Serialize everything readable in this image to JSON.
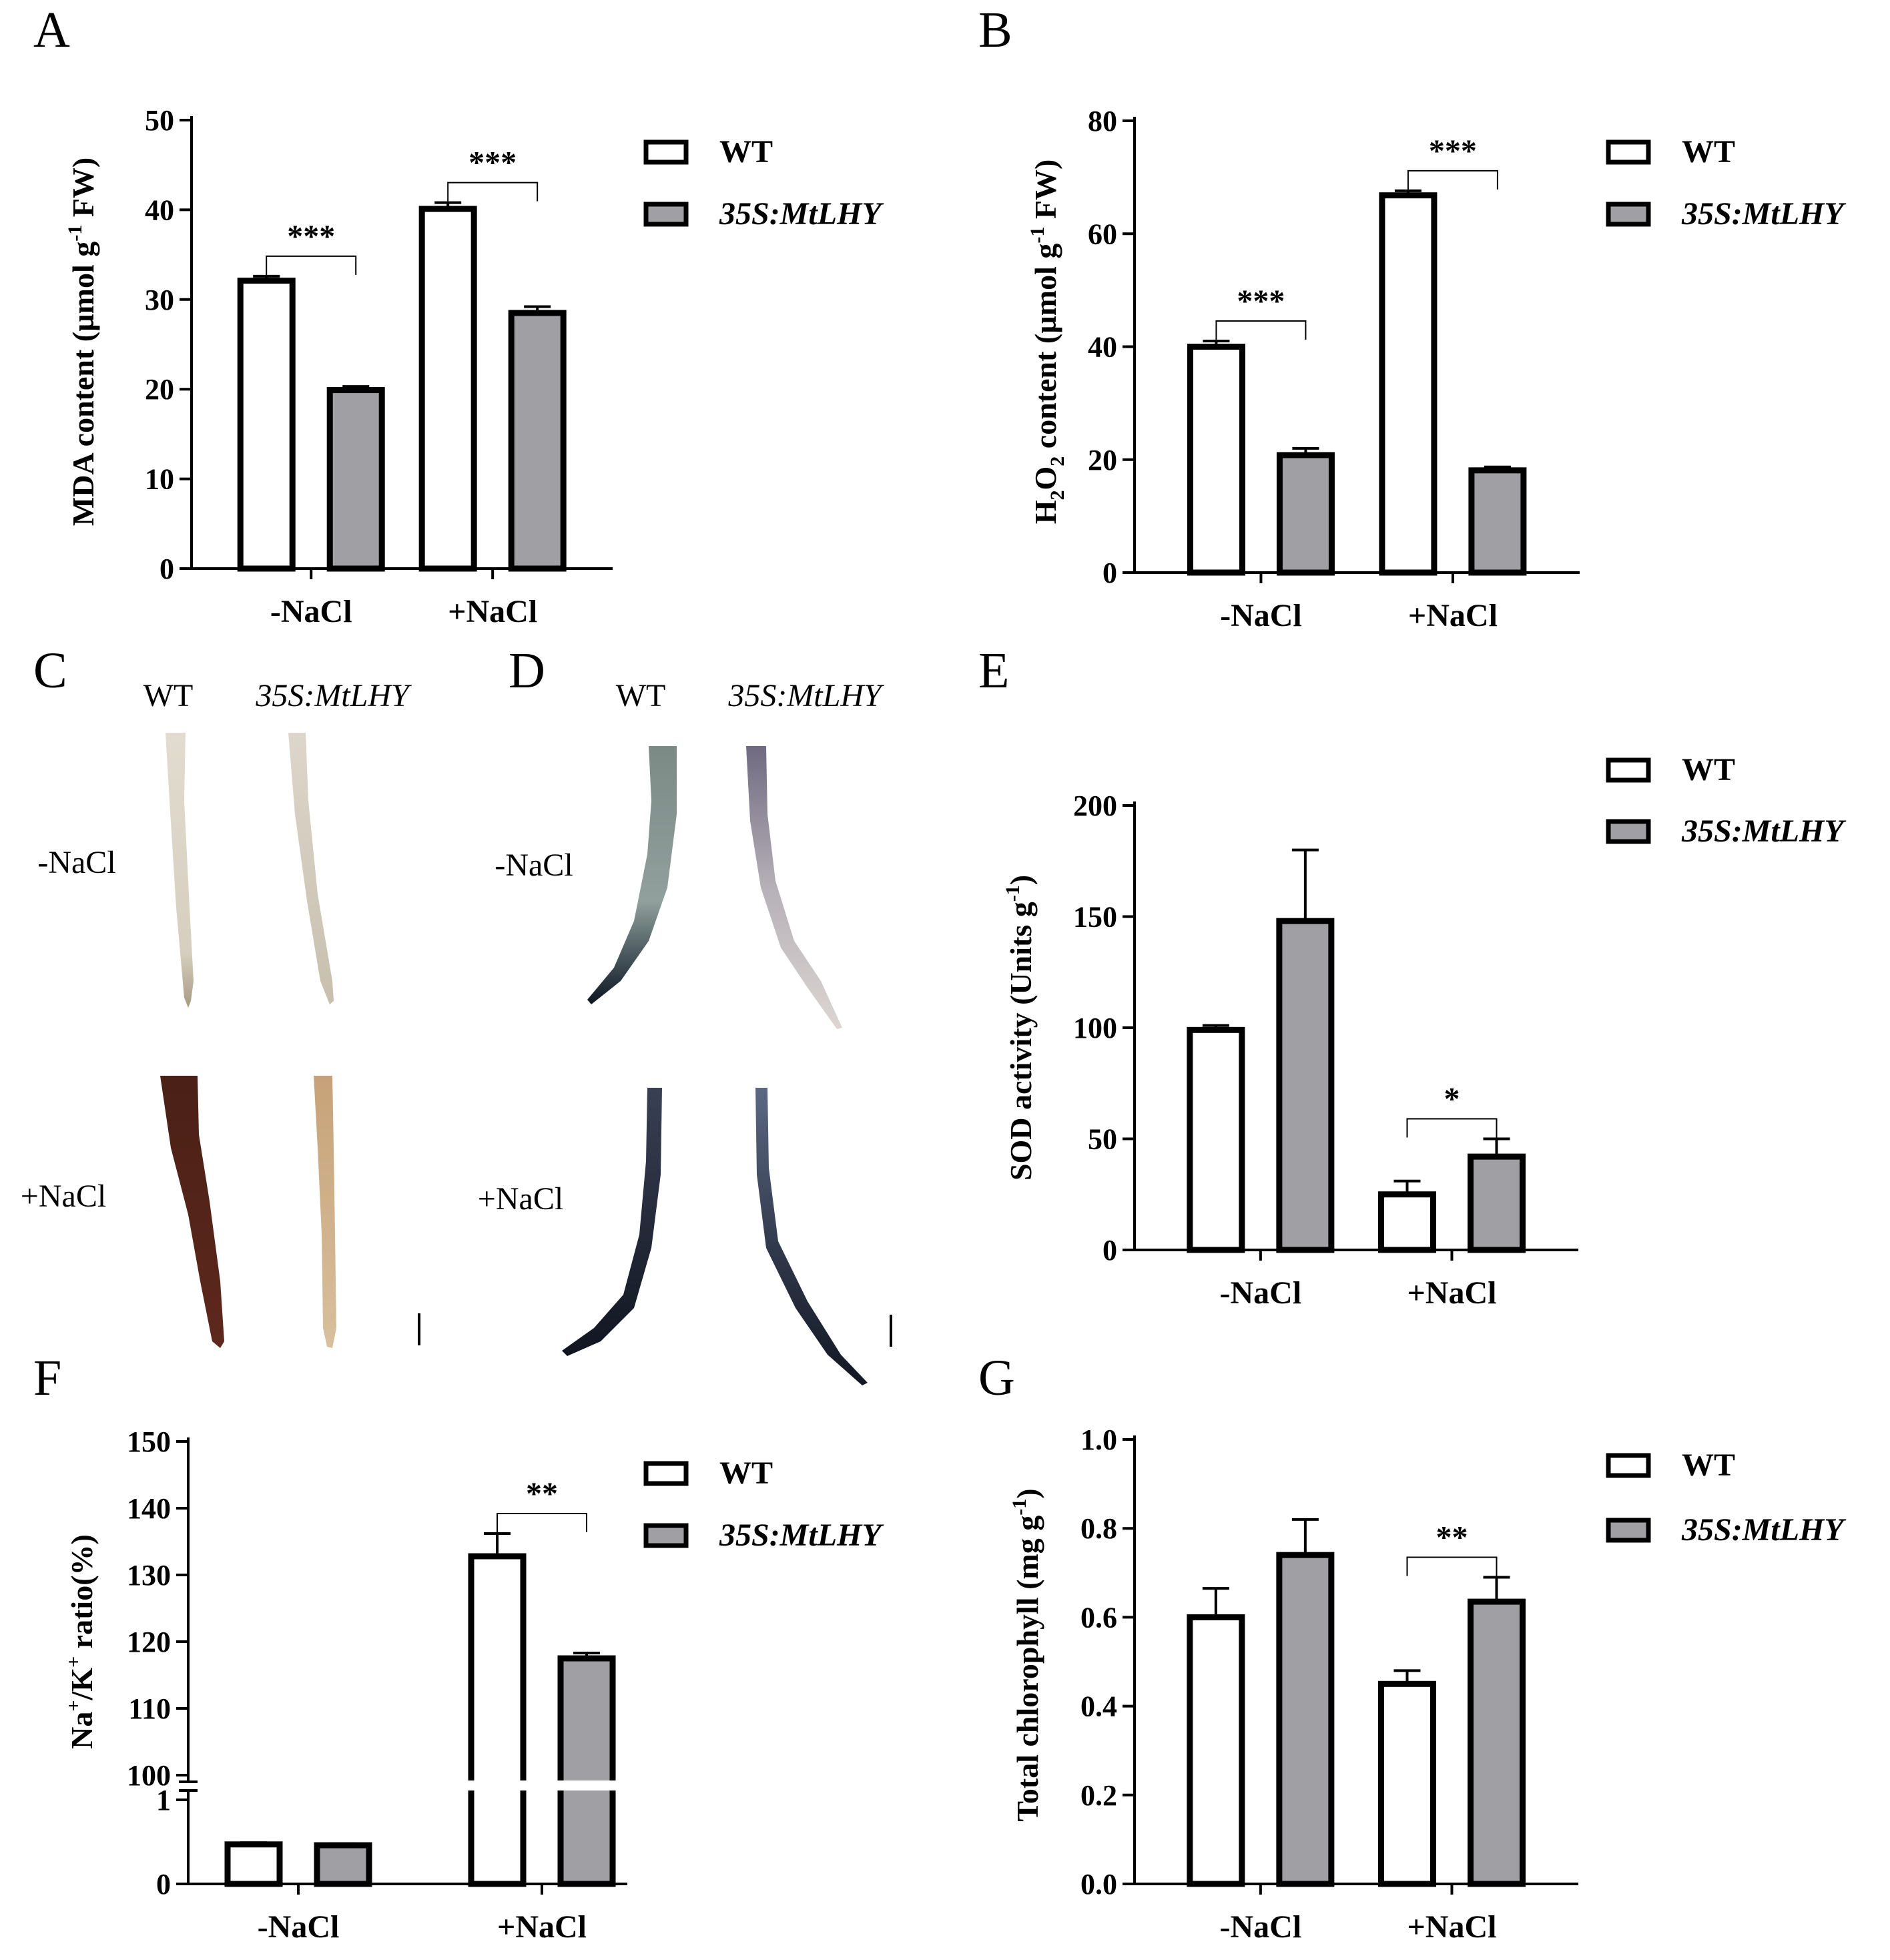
{
  "legend": {
    "wt": "WT",
    "tg": "35S:MtLHY"
  },
  "colors": {
    "wt_fill": "#ffffff",
    "tg_fill": "#a0a0a4",
    "stroke": "#000000"
  },
  "chart_data": [
    {
      "id": "A",
      "type": "bar",
      "letter": "A",
      "categories": [
        "-NaCl",
        "+NaCl"
      ],
      "ylabel": "MDA content (µmol g⁻¹ FW)",
      "ylim": [
        0,
        50
      ],
      "yticks": [
        "0",
        "10",
        "20",
        "30",
        "40",
        "50"
      ],
      "series": [
        {
          "name": "WT",
          "values": [
            32.1,
            40.1
          ],
          "errors": [
            0.5,
            0.7
          ]
        },
        {
          "name": "35S:MtLHY",
          "values": [
            19.9,
            28.5
          ],
          "errors": [
            0.4,
            0.7
          ]
        }
      ],
      "significance": [
        "***",
        "***"
      ]
    },
    {
      "id": "B",
      "type": "bar",
      "letter": "B",
      "categories": [
        "-NaCl",
        "+NaCl"
      ],
      "ylabel": "H₂O₂ content (µmol g⁻¹ FW)",
      "ylim": [
        0,
        80
      ],
      "yticks": [
        "0",
        "20",
        "40",
        "60",
        "80"
      ],
      "series": [
        {
          "name": "WT",
          "values": [
            40.0,
            66.8
          ],
          "errors": [
            1.0,
            0.8
          ]
        },
        {
          "name": "35S:MtLHY",
          "values": [
            20.8,
            18.1
          ],
          "errors": [
            1.2,
            0.6
          ]
        }
      ],
      "significance": [
        "***",
        "***"
      ]
    },
    {
      "id": "E",
      "type": "bar",
      "letter": "E",
      "categories": [
        "-NaCl",
        "+NaCl"
      ],
      "ylabel": "SOD activity (Units g⁻¹)",
      "ylim": [
        0,
        200
      ],
      "yticks": [
        "0",
        "50",
        "100",
        "150",
        "200"
      ],
      "series": [
        {
          "name": "WT",
          "values": [
            99,
            25
          ],
          "errors": [
            2,
            6
          ]
        },
        {
          "name": "35S:MtLHY",
          "values": [
            148,
            42
          ],
          "errors": [
            32,
            8
          ]
        }
      ],
      "significance": [
        "",
        "*"
      ]
    },
    {
      "id": "F",
      "type": "bar",
      "letter": "F",
      "categories": [
        "-NaCl",
        "+NaCl"
      ],
      "ylabel": "Na⁺/K⁺ ratio(%)",
      "ylim": [
        0,
        150
      ],
      "broken_axis": {
        "lower": [
          0,
          1
        ],
        "upper": [
          100,
          150
        ]
      },
      "yticks_lower": [
        "0",
        "1"
      ],
      "yticks_upper": [
        "100",
        "110",
        "120",
        "130",
        "140",
        "150"
      ],
      "series": [
        {
          "name": "WT",
          "values": [
            0.47,
            132.8
          ],
          "errors": [
            0.02,
            3.4
          ]
        },
        {
          "name": "35S:MtLHY",
          "values": [
            0.46,
            117.5
          ],
          "errors": [
            0.02,
            0.8
          ]
        }
      ],
      "significance": [
        "",
        "**"
      ]
    },
    {
      "id": "G",
      "type": "bar",
      "letter": "G",
      "categories": [
        "-NaCl",
        "+NaCl"
      ],
      "ylabel": "Total chlorophyll (mg g⁻¹)",
      "ylim": [
        0,
        1.0
      ],
      "yticks": [
        "0.0",
        "0.2",
        "0.4",
        "0.6",
        "0.8",
        "1.0"
      ],
      "series": [
        {
          "name": "WT",
          "values": [
            0.6,
            0.45
          ],
          "errors": [
            0.065,
            0.03
          ]
        },
        {
          "name": "35S:MtLHY",
          "values": [
            0.74,
            0.635
          ],
          "errors": [
            0.08,
            0.055
          ]
        }
      ],
      "significance": [
        "",
        "**"
      ]
    }
  ],
  "photos": {
    "C": {
      "letter": "C",
      "col1": "WT",
      "col2": "35S:MtLHY",
      "row1": "-NaCl",
      "row2": "+NaCl"
    },
    "D": {
      "letter": "D",
      "col1": "WT",
      "col2": "35S:MtLHY",
      "row1": "-NaCl",
      "row2": "+NaCl"
    }
  }
}
